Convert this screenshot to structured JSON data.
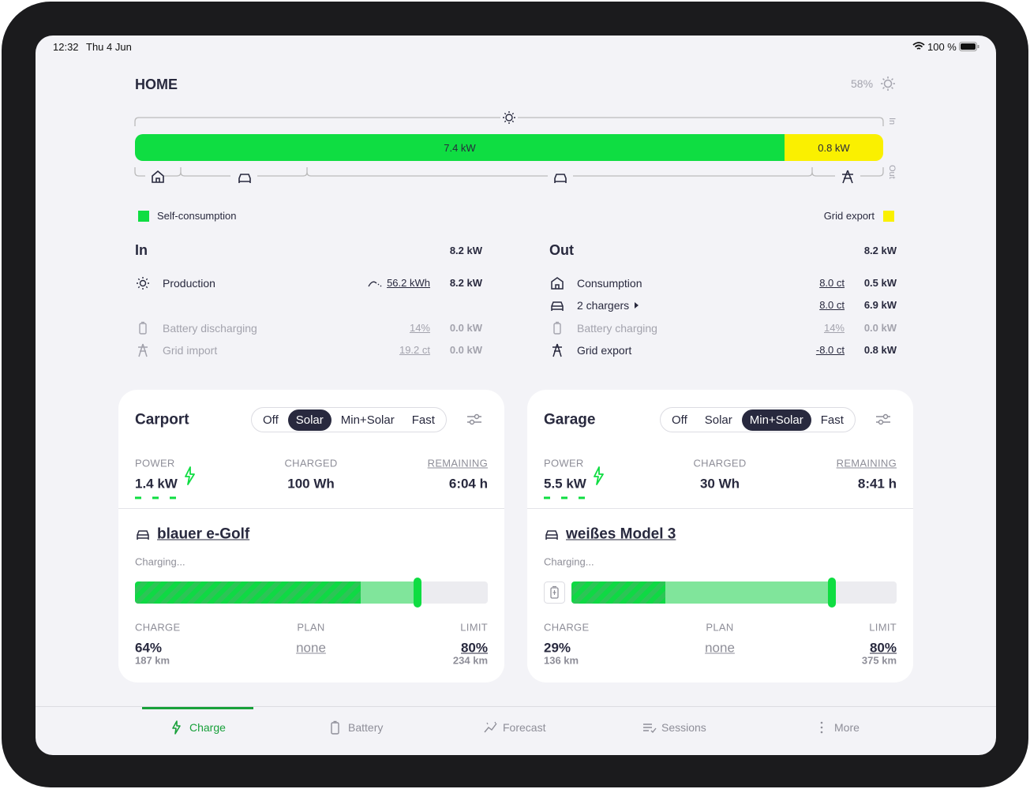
{
  "status_bar": {
    "time": "12:32",
    "date": "Thu 4 Jun",
    "battery": "100 %"
  },
  "header": {
    "title": "HOME",
    "brightness": "58%"
  },
  "energyflow": {
    "self_consumption": "7.4 kW",
    "grid_export": "0.8 kW",
    "legend": {
      "self_consumption": "Self-consumption",
      "grid_export": "Grid export"
    }
  },
  "in": {
    "title": "In",
    "total": "8.2 kW",
    "rows": [
      {
        "label": "Production",
        "detail": "56.2 kWh",
        "power": "8.2 kW"
      },
      {
        "label": "Battery discharging",
        "detail": "14%",
        "power": "0.0 kW"
      },
      {
        "label": "Grid import",
        "detail": "19.2 ct",
        "power": "0.0 kW"
      }
    ]
  },
  "out": {
    "title": "Out",
    "total": "8.2 kW",
    "rows": [
      {
        "label": "Consumption",
        "detail": "8.0 ct",
        "power": "0.5 kW"
      },
      {
        "label": "2 chargers",
        "detail": "8.0 ct",
        "power": "6.9 kW"
      },
      {
        "label": "Battery charging",
        "detail": "14%",
        "power": "0.0 kW"
      },
      {
        "label": "Grid export",
        "detail": "-8.0 ct",
        "power": "0.8 kW"
      }
    ]
  },
  "loadpoints": [
    {
      "title": "Carport",
      "modes": [
        "Off",
        "Solar",
        "Min+Solar",
        "Fast"
      ],
      "active_mode": 1,
      "power_label": "POWER",
      "power": "1.4 kW",
      "charged_label": "CHARGED",
      "charged": "100 Wh",
      "remaining_label": "REMAINING",
      "remaining": "6:04 h",
      "vehicle": "blauer e-Golf",
      "status": "Charging...",
      "charge_label": "CHARGE",
      "charge": "64%",
      "charge_range": "187 km",
      "plan_label": "PLAN",
      "plan": "none",
      "limit_label": "LIMIT",
      "limit": "80%",
      "limit_range": "234 km"
    },
    {
      "title": "Garage",
      "modes": [
        "Off",
        "Solar",
        "Min+Solar",
        "Fast"
      ],
      "active_mode": 2,
      "power_label": "POWER",
      "power": "5.5 kW",
      "charged_label": "CHARGED",
      "charged": "30 Wh",
      "remaining_label": "REMAINING",
      "remaining": "8:41 h",
      "vehicle": "weißes Model 3",
      "status": "Charging...",
      "charge_label": "CHARGE",
      "charge": "29%",
      "charge_range": "136 km",
      "plan_label": "PLAN",
      "plan": "none",
      "limit_label": "LIMIT",
      "limit": "80%",
      "limit_range": "375 km"
    }
  ],
  "tabs": {
    "items": [
      "Charge",
      "Battery",
      "Forecast",
      "Sessions",
      "More"
    ],
    "active": 0
  }
}
